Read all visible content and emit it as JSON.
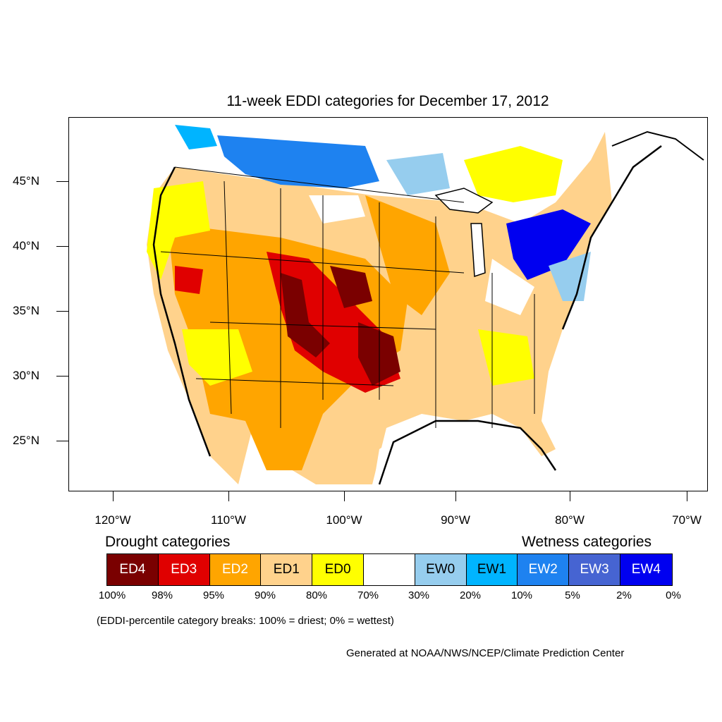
{
  "title": "11-week EDDI categories for December 17, 2012",
  "lat_labels": [
    "45°N",
    "40°N",
    "35°N",
    "30°N",
    "25°N"
  ],
  "lon_labels": [
    "120°W",
    "110°W",
    "100°W",
    "90°W",
    "80°W",
    "70°W"
  ],
  "legend": {
    "drought_heading": "Drought categories",
    "wetness_heading": "Wetness categories",
    "categories": [
      {
        "label": "ED4",
        "color": "#7a0000",
        "text_color": "#ffffff"
      },
      {
        "label": "ED3",
        "color": "#e00000",
        "text_color": "#ffffff"
      },
      {
        "label": "ED2",
        "color": "#ffa500",
        "text_color": "#ffffff"
      },
      {
        "label": "ED1",
        "color": "#ffd28c",
        "text_color": "#000000"
      },
      {
        "label": "ED0",
        "color": "#ffff00",
        "text_color": "#000000"
      },
      {
        "label": "",
        "color": "#ffffff",
        "text_color": "#000000"
      },
      {
        "label": "EW0",
        "color": "#96cdee",
        "text_color": "#000000"
      },
      {
        "label": "EW1",
        "color": "#00b4ff",
        "text_color": "#000000"
      },
      {
        "label": "EW2",
        "color": "#1e82f0",
        "text_color": "#ffffff"
      },
      {
        "label": "EW3",
        "color": "#4664d2",
        "text_color": "#ffffff"
      },
      {
        "label": "EW4",
        "color": "#0000f0",
        "text_color": "#ffffff"
      }
    ],
    "percent_breaks": [
      "100%",
      "98%",
      "95%",
      "90%",
      "80%",
      "70%",
      "30%",
      "20%",
      "10%",
      "5%",
      "2%",
      "0%"
    ]
  },
  "note": "(EDDI-percentile category breaks: 100% = driest; 0% = wettest)",
  "credit": "Generated at NOAA/NWS/NCEP/Climate Prediction Center"
}
